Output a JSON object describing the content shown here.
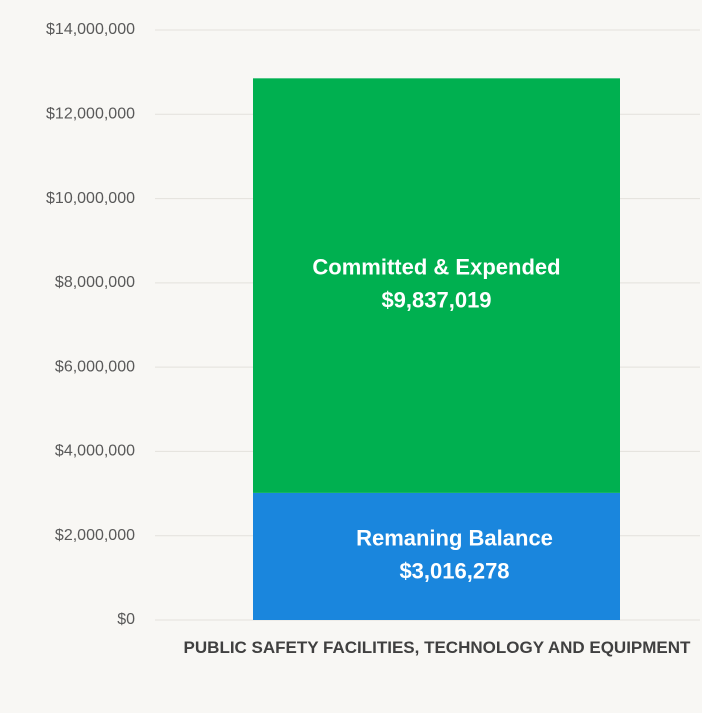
{
  "chart_data": {
    "type": "stacked_bar",
    "categories": [
      "PUBLIC SAFETY FACILITIES, TECHNOLOGY AND EQUIPMENT"
    ],
    "series": [
      {
        "name": "Remaning Balance",
        "color": "#1a86dd",
        "values": [
          3016278
        ],
        "value_labels": [
          "$3,016,278"
        ]
      },
      {
        "name": "Committed & Expended",
        "color": "#00b050",
        "values": [
          9837019
        ],
        "value_labels": [
          "$9,837,019"
        ]
      }
    ],
    "ylim": [
      0,
      14000000
    ],
    "yticks": [
      {
        "value": 0,
        "label": "$0"
      },
      {
        "value": 2000000,
        "label": "$2,000,000"
      },
      {
        "value": 4000000,
        "label": "$4,000,000"
      },
      {
        "value": 6000000,
        "label": "$6,000,000"
      },
      {
        "value": 8000000,
        "label": "$8,000,000"
      },
      {
        "value": 10000000,
        "label": "$10,000,000"
      },
      {
        "value": 12000000,
        "label": "$12,000,000"
      },
      {
        "value": 14000000,
        "label": "$14,000,000"
      }
    ],
    "grid": true
  }
}
